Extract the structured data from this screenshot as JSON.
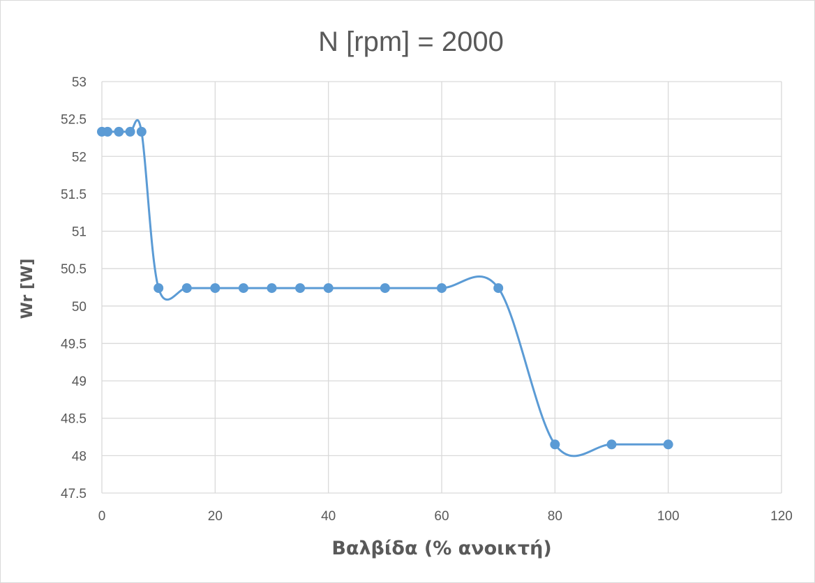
{
  "chart_data": {
    "type": "line",
    "title": "N [rpm] = 2000",
    "xlabel": "Βαλβίδα (% ανοικτή)",
    "ylabel": "Wr [W]",
    "xlim": [
      0,
      120
    ],
    "ylim": [
      47.5,
      53
    ],
    "x_ticks": [
      0,
      20,
      40,
      60,
      80,
      100,
      120
    ],
    "y_ticks": [
      47.5,
      48,
      48.5,
      49,
      49.5,
      50,
      50.5,
      51,
      51.5,
      52,
      52.5,
      53
    ],
    "grid": true,
    "smoothed": true,
    "series": [
      {
        "color": "#5b9bd5",
        "x": [
          0,
          1,
          3,
          5,
          7,
          10,
          15,
          20,
          25,
          30,
          35,
          40,
          50,
          60,
          70,
          80,
          90,
          100
        ],
        "y": [
          52.33,
          52.33,
          52.33,
          52.33,
          52.33,
          50.24,
          50.24,
          50.24,
          50.24,
          50.24,
          50.24,
          50.24,
          50.24,
          50.24,
          50.24,
          48.15,
          48.15,
          48.15
        ]
      }
    ]
  }
}
